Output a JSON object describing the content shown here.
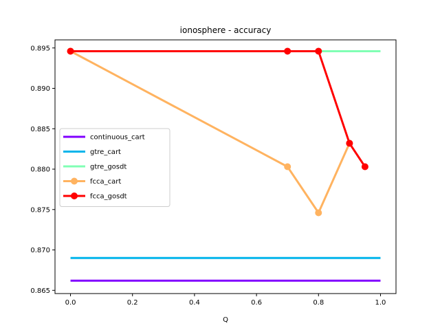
{
  "chart_data": {
    "type": "line",
    "title": "ionosphere - accuracy",
    "xlabel": "Q",
    "ylabel": "",
    "xlim": [
      -0.05,
      1.05
    ],
    "ylim": [
      0.8646,
      0.896
    ],
    "xticks": [
      0.0,
      0.2,
      0.4,
      0.6,
      0.8,
      1.0
    ],
    "xtick_labels": [
      "0.0",
      "0.2",
      "0.4",
      "0.6",
      "0.8",
      "1.0"
    ],
    "yticks": [
      0.865,
      0.87,
      0.875,
      0.88,
      0.885,
      0.89,
      0.895
    ],
    "ytick_labels": [
      "0.865",
      "0.870",
      "0.875",
      "0.880",
      "0.885",
      "0.890",
      "0.895"
    ],
    "grid": false,
    "legend_position": "center-left",
    "series": [
      {
        "name": "continuous_cart",
        "color": "#8000ff",
        "marker": false,
        "x": [
          0.0,
          1.0
        ],
        "y": [
          0.8662,
          0.8662
        ]
      },
      {
        "name": "gtre_cart",
        "color": "#00b4eb",
        "marker": false,
        "x": [
          0.0,
          1.0
        ],
        "y": [
          0.869,
          0.869
        ]
      },
      {
        "name": "gtre_gosdt",
        "color": "#80ffb4",
        "marker": false,
        "x": [
          0.0,
          1.0
        ],
        "y": [
          0.8946,
          0.8946
        ]
      },
      {
        "name": "fcca_cart",
        "color": "#ffb360",
        "marker": true,
        "x": [
          0.0,
          0.7,
          0.8,
          0.9
        ],
        "y": [
          0.8946,
          0.8803,
          0.8746,
          0.8832
        ]
      },
      {
        "name": "fcca_gosdt",
        "color": "#ff0000",
        "marker": true,
        "x": [
          0.0,
          0.7,
          0.8,
          0.9,
          0.95
        ],
        "y": [
          0.8946,
          0.8946,
          0.8946,
          0.8832,
          0.8803
        ]
      }
    ]
  }
}
